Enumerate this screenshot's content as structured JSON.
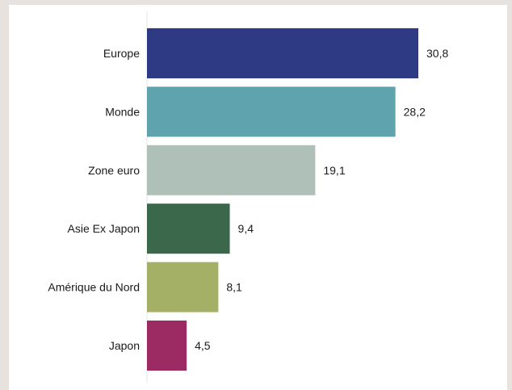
{
  "chart_data": {
    "type": "bar",
    "orientation": "horizontal",
    "categories": [
      "Europe",
      "Monde",
      "Zone euro",
      "Asie Ex Japon",
      "Amérique du Nord",
      "Japon"
    ],
    "values": [
      30.8,
      28.2,
      19.1,
      9.4,
      8.1,
      4.5
    ],
    "value_labels": [
      "30,8",
      "28,2",
      "19,1",
      "9,4",
      "8,1",
      "4,5"
    ],
    "colors": [
      "#2e3a84",
      "#5ea3ae",
      "#aec0b8",
      "#3b674a",
      "#a3b066",
      "#9c2b63"
    ],
    "xlim": [
      0,
      30.8
    ],
    "title": "",
    "xlabel": "",
    "ylabel": "",
    "grid": false,
    "legend": "none"
  }
}
